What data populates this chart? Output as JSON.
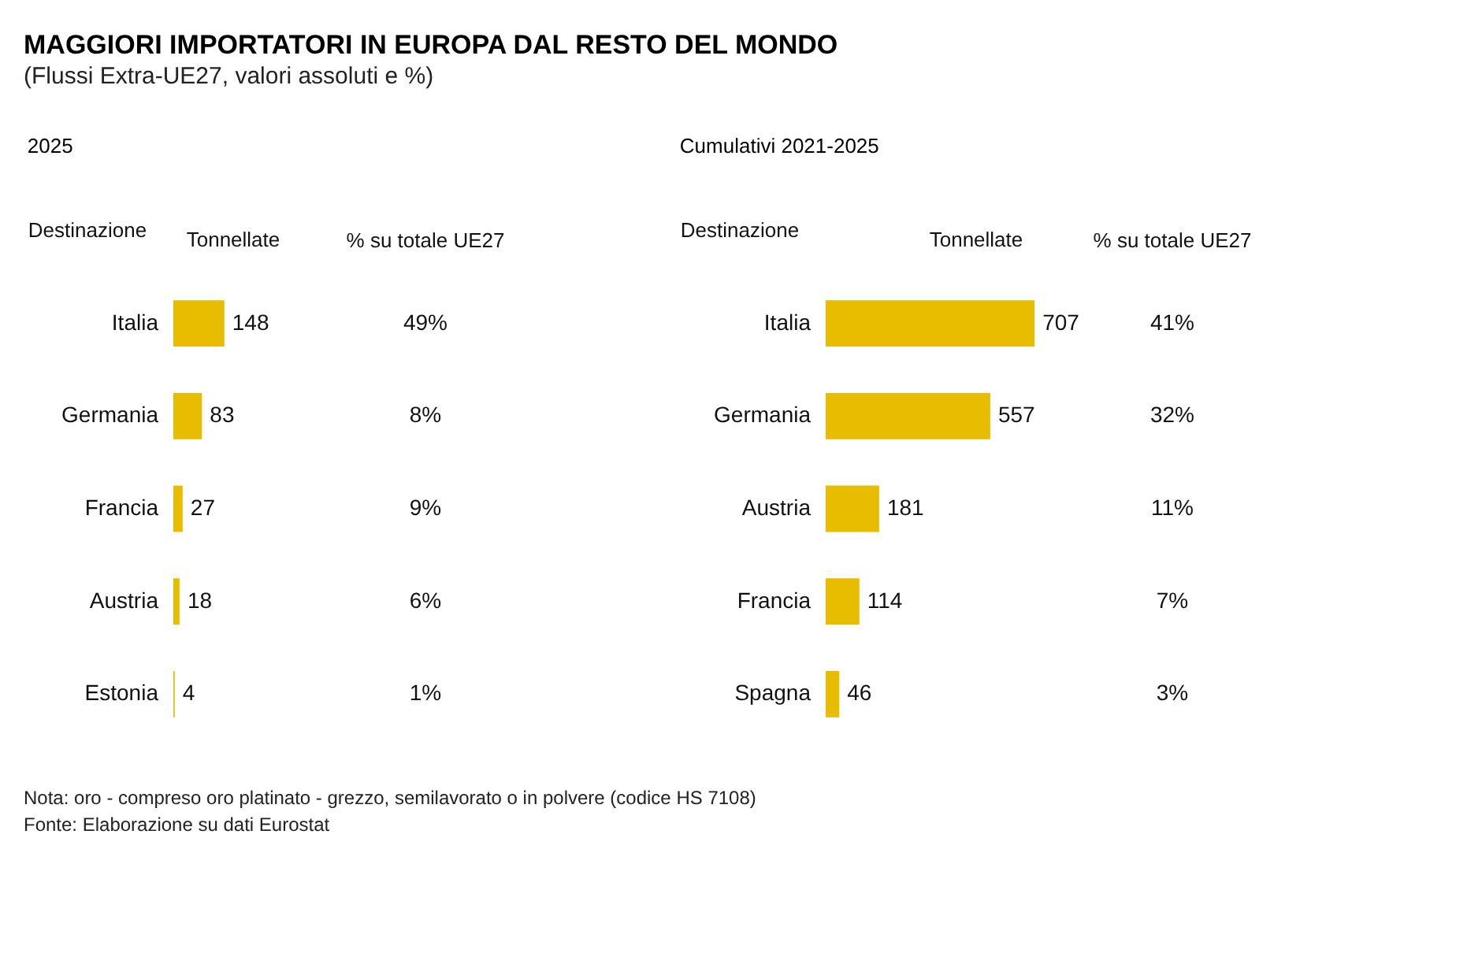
{
  "chart_data": [
    {
      "type": "other",
      "title": "MAGGIORI IMPORTATORI IN EUROPA DAL RESTO DEL MONDO",
      "subtitle": "(Flussi Extra-UE27, valori assoluti e %)",
      "annotations": [
        "Nota: oro - compreso oro platinato - grezzo, semilavorato o in polvere (codice HS 7108)",
        "Fonte: Elaborazione su dati Eurostat"
      ]
    },
    {
      "type": "bar",
      "orientation": "horizontal",
      "title": "2025",
      "ylabel": "Destinazione",
      "xlabel": "Tonnellate",
      "categories": [
        "Italia",
        "Germania",
        "Francia",
        "Austria",
        "Estonia"
      ],
      "values": [
        148,
        83,
        27,
        18,
        4
      ],
      "color": "#e8bd00",
      "data_labels": true,
      "annotations": [
        "% su totale UE27",
        "49%",
        "8%",
        "9%",
        "6%",
        "1%"
      ]
    },
    {
      "type": "bar",
      "orientation": "horizontal",
      "title": "Cumulativi 2021-2025",
      "ylabel": "Destinazione",
      "xlabel": "Tonnellate",
      "categories": [
        "Italia",
        "Germania",
        "Austria",
        "Francia",
        "Spagna"
      ],
      "values": [
        707,
        557,
        181,
        114,
        46
      ],
      "color": "#e8bd00",
      "data_labels": true,
      "annotations": [
        "% su totale UE27",
        "41%",
        "32%",
        "11%",
        "7%",
        "3%"
      ]
    }
  ]
}
